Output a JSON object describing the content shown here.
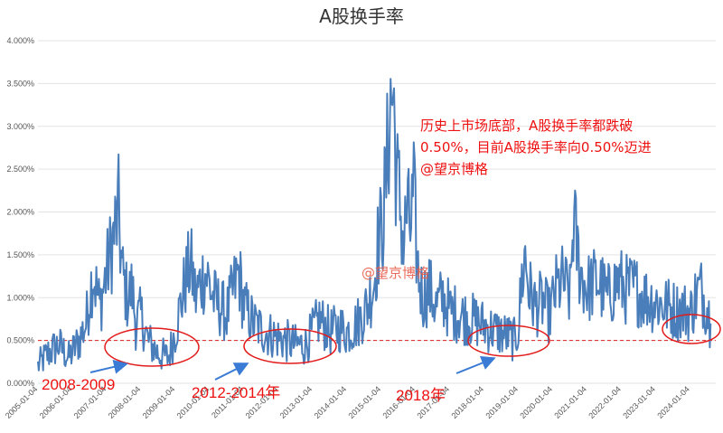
{
  "chart_data": {
    "type": "line",
    "title": "A股换手率",
    "ylim": [
      0,
      4.0
    ],
    "y_ticks": [
      "0.000%",
      "0.500%",
      "1.000%",
      "1.500%",
      "2.000%",
      "2.500%",
      "3.000%",
      "3.500%",
      "4.000%"
    ],
    "x_ticks": [
      "2005-01-04",
      "2006-01-04",
      "2007-01-04",
      "2008-01-04",
      "2009-01-04",
      "2010-01-04",
      "2011-01-04",
      "2012-01-04",
      "2013-01-04",
      "2014-01-04",
      "2015-01-04",
      "2016-01-04",
      "2017-01-04",
      "2018-01-04",
      "2019-01-04",
      "2020-01-04",
      "2021-01-04",
      "2022-01-04",
      "2023-01-04",
      "2024-01-04"
    ],
    "grid": true,
    "reference_line": {
      "value": 0.5,
      "style": "dashed",
      "color": "#e02020"
    },
    "series": [
      {
        "color": "#4a7ebb",
        "x": [
          2005.0,
          2005.3,
          2005.6,
          2005.9,
          2006.2,
          2006.4,
          2006.6,
          2006.8,
          2006.95,
          2007.1,
          2007.25,
          2007.35,
          2007.45,
          2007.6,
          2007.75,
          2007.85,
          2008.0,
          2008.2,
          2008.5,
          2008.8,
          2009.0,
          2009.15,
          2009.3,
          2009.45,
          2009.6,
          2009.75,
          2009.9,
          2010.1,
          2010.3,
          2010.5,
          2010.7,
          2010.85,
          2011.0,
          2011.3,
          2011.6,
          2011.9,
          2012.2,
          2012.5,
          2012.8,
          2013.0,
          2013.2,
          2013.5,
          2013.8,
          2014.0,
          2014.3,
          2014.6,
          2014.8,
          2014.9,
          2015.05,
          2015.15,
          2015.25,
          2015.35,
          2015.45,
          2015.55,
          2015.65,
          2015.75,
          2015.85,
          2015.95,
          2016.05,
          2016.2,
          2016.4,
          2016.6,
          2016.8,
          2017.0,
          2017.3,
          2017.6,
          2017.9,
          2018.1,
          2018.4,
          2018.7,
          2018.9,
          2019.0,
          2019.1,
          2019.2,
          2019.3,
          2019.5,
          2019.7,
          2019.9,
          2020.1,
          2020.3,
          2020.5,
          2020.6,
          2020.8,
          2021.0,
          2021.3,
          2021.6,
          2021.9,
          2022.1,
          2022.4,
          2022.7,
          2023.0,
          2023.3,
          2023.6,
          2023.9,
          2024.0,
          2024.15,
          2024.3,
          2024.5,
          2024.6
        ],
        "values": [
          0.2,
          0.35,
          0.45,
          0.3,
          0.5,
          0.7,
          1.3,
          0.9,
          1.2,
          1.5,
          1.8,
          2.0,
          1.3,
          1.0,
          1.1,
          0.7,
          0.8,
          0.5,
          0.35,
          0.3,
          0.6,
          0.9,
          1.2,
          1.4,
          1.0,
          1.2,
          1.3,
          1.0,
          0.9,
          0.8,
          1.1,
          1.3,
          0.9,
          0.7,
          0.6,
          0.55,
          0.5,
          0.45,
          0.45,
          0.6,
          0.75,
          0.6,
          0.65,
          0.6,
          0.7,
          0.9,
          1.2,
          1.6,
          1.9,
          2.4,
          3.2,
          3.4,
          2.4,
          2.1,
          1.6,
          2.0,
          1.8,
          2.2,
          1.4,
          1.0,
          1.1,
          0.9,
          1.0,
          0.85,
          0.8,
          0.75,
          0.7,
          0.65,
          0.6,
          0.55,
          0.5,
          0.65,
          1.2,
          1.5,
          1.1,
          0.9,
          0.95,
          0.8,
          1.1,
          1.2,
          1.0,
          1.9,
          1.3,
          1.1,
          1.2,
          1.0,
          1.2,
          1.1,
          1.1,
          1.0,
          0.95,
          0.9,
          0.85,
          0.85,
          0.8,
          1.0,
          1.1,
          0.9,
          0.7
        ]
      }
    ],
    "annotations": {
      "note_lines": [
        "历史上市场底部，A股换手率都跌破",
        "0.50%，目前A股换手率向0.50%迈进",
        "@望京博格"
      ],
      "watermark": "@望京博格",
      "periods": [
        "2008-2009",
        "2012-2014年",
        "2018年"
      ]
    }
  }
}
